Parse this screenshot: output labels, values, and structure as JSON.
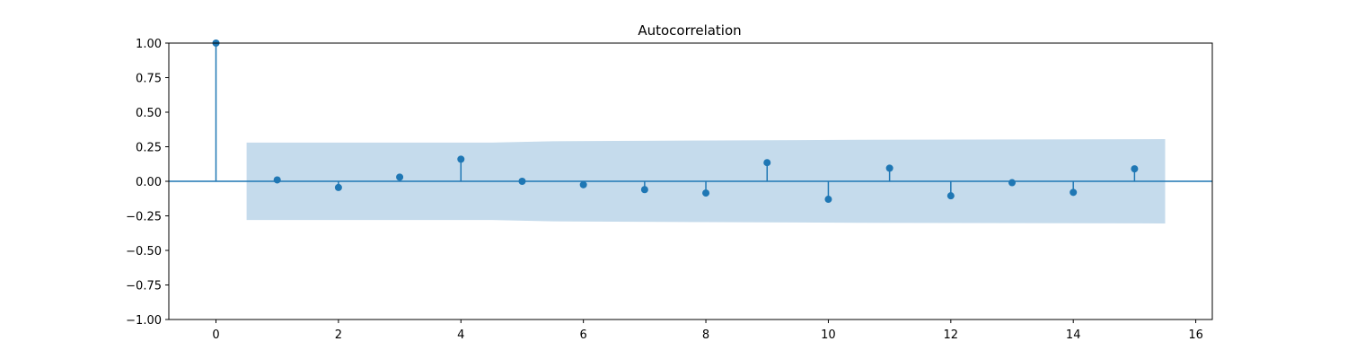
{
  "chart_data": {
    "type": "stem",
    "title": "Autocorrelation",
    "xlabel": "",
    "ylabel": "",
    "xlim": [
      -0.77,
      16.27
    ],
    "ylim": [
      -1.0,
      1.0
    ],
    "x_ticks": [
      0,
      2,
      4,
      6,
      8,
      10,
      12,
      14,
      16
    ],
    "x_tick_labels": [
      "0",
      "2",
      "4",
      "6",
      "8",
      "10",
      "12",
      "14",
      "16"
    ],
    "y_ticks": [
      1.0,
      0.75,
      0.5,
      0.25,
      0.0,
      -0.25,
      -0.5,
      -0.75,
      -1.0
    ],
    "y_tick_labels": [
      "1.00",
      "0.75",
      "0.50",
      "0.25",
      "0.00",
      "−0.25",
      "−0.50",
      "−0.75",
      "−1.00"
    ],
    "lags": [
      0,
      1,
      2,
      3,
      4,
      5,
      6,
      7,
      8,
      9,
      10,
      11,
      12,
      13,
      14,
      15
    ],
    "values": [
      1.0,
      0.01,
      -0.045,
      0.03,
      0.16,
      0.0,
      -0.025,
      -0.06,
      -0.085,
      0.135,
      -0.13,
      0.095,
      -0.105,
      -0.01,
      -0.08,
      0.09
    ],
    "confidence_band": {
      "x": [
        0.5,
        4.5,
        5.5,
        10.5,
        15.5
      ],
      "upper": [
        0.28,
        0.28,
        0.29,
        0.3,
        0.305
      ],
      "lower": [
        -0.28,
        -0.28,
        -0.29,
        -0.3,
        -0.305
      ]
    },
    "grid": false,
    "legend": "none",
    "colors": {
      "stem": "#1f77b4",
      "band": "#c5dbec",
      "axis": "#000000"
    }
  }
}
